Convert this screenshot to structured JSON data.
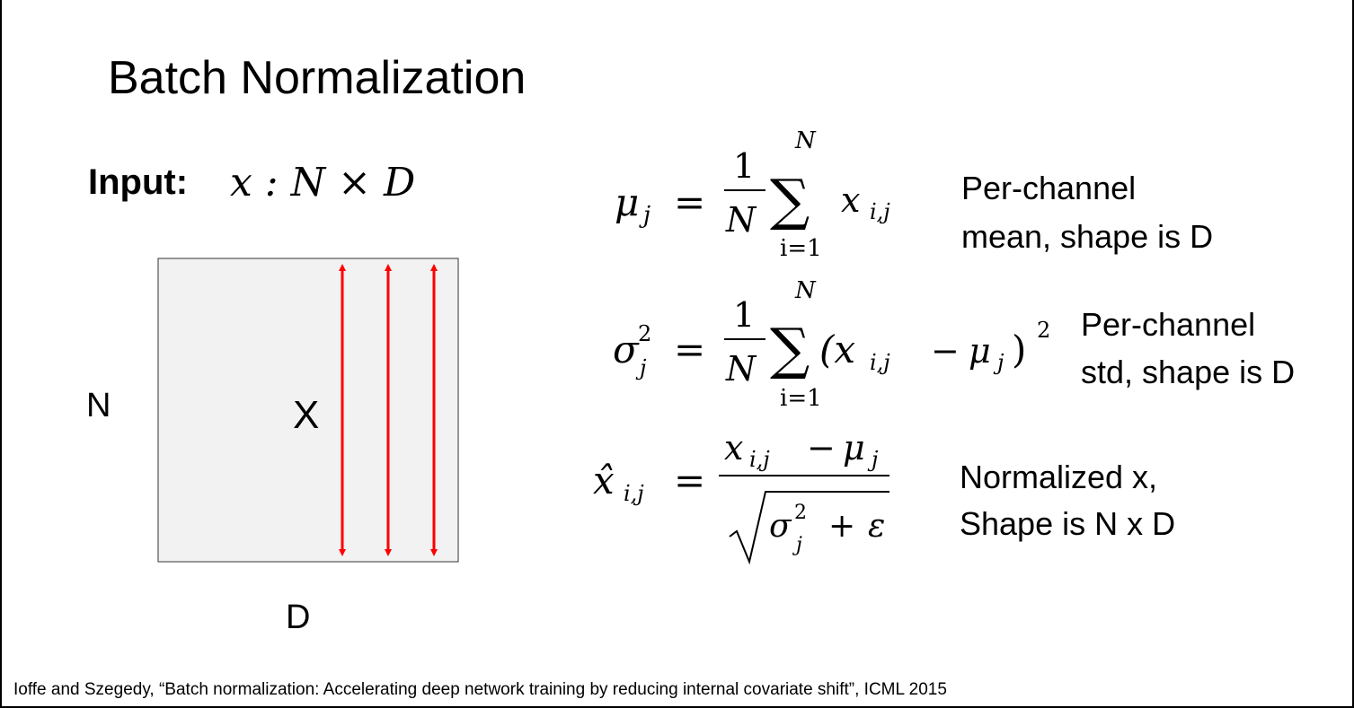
{
  "slide": {
    "title": "Batch Normalization",
    "input_label": "Input:",
    "input_expr": "x : N × D",
    "diagram": {
      "row_label": "N",
      "matrix_label": "X",
      "col_label": "D"
    },
    "equations": [
      {
        "parts": [
          "μ",
          "j",
          "=",
          "1",
          "N",
          "∑",
          "N",
          "i=1",
          "x",
          "i,j"
        ],
        "note": [
          "Per-channel",
          "mean, shape is D"
        ]
      },
      {
        "parts": [
          "σ",
          "2",
          "j",
          "=",
          "1",
          "N",
          "∑",
          "N",
          "i=1",
          "(x",
          "i,j",
          "−",
          "μ",
          "j",
          ")",
          "2"
        ],
        "note": [
          "Per-channel",
          "std, shape is D"
        ]
      },
      {
        "parts": [
          "x̂",
          "i,j",
          "=",
          "x",
          "i,j",
          "−",
          "μ",
          "j",
          "σ",
          "2",
          "j",
          "+",
          "ε"
        ],
        "note": [
          "Normalized x,",
          "Shape is N x D"
        ]
      }
    ],
    "citation": "Ioffe and Szegedy, “Batch normalization: Accelerating deep network training by reducing internal covariate shift”, ICML 2015"
  }
}
